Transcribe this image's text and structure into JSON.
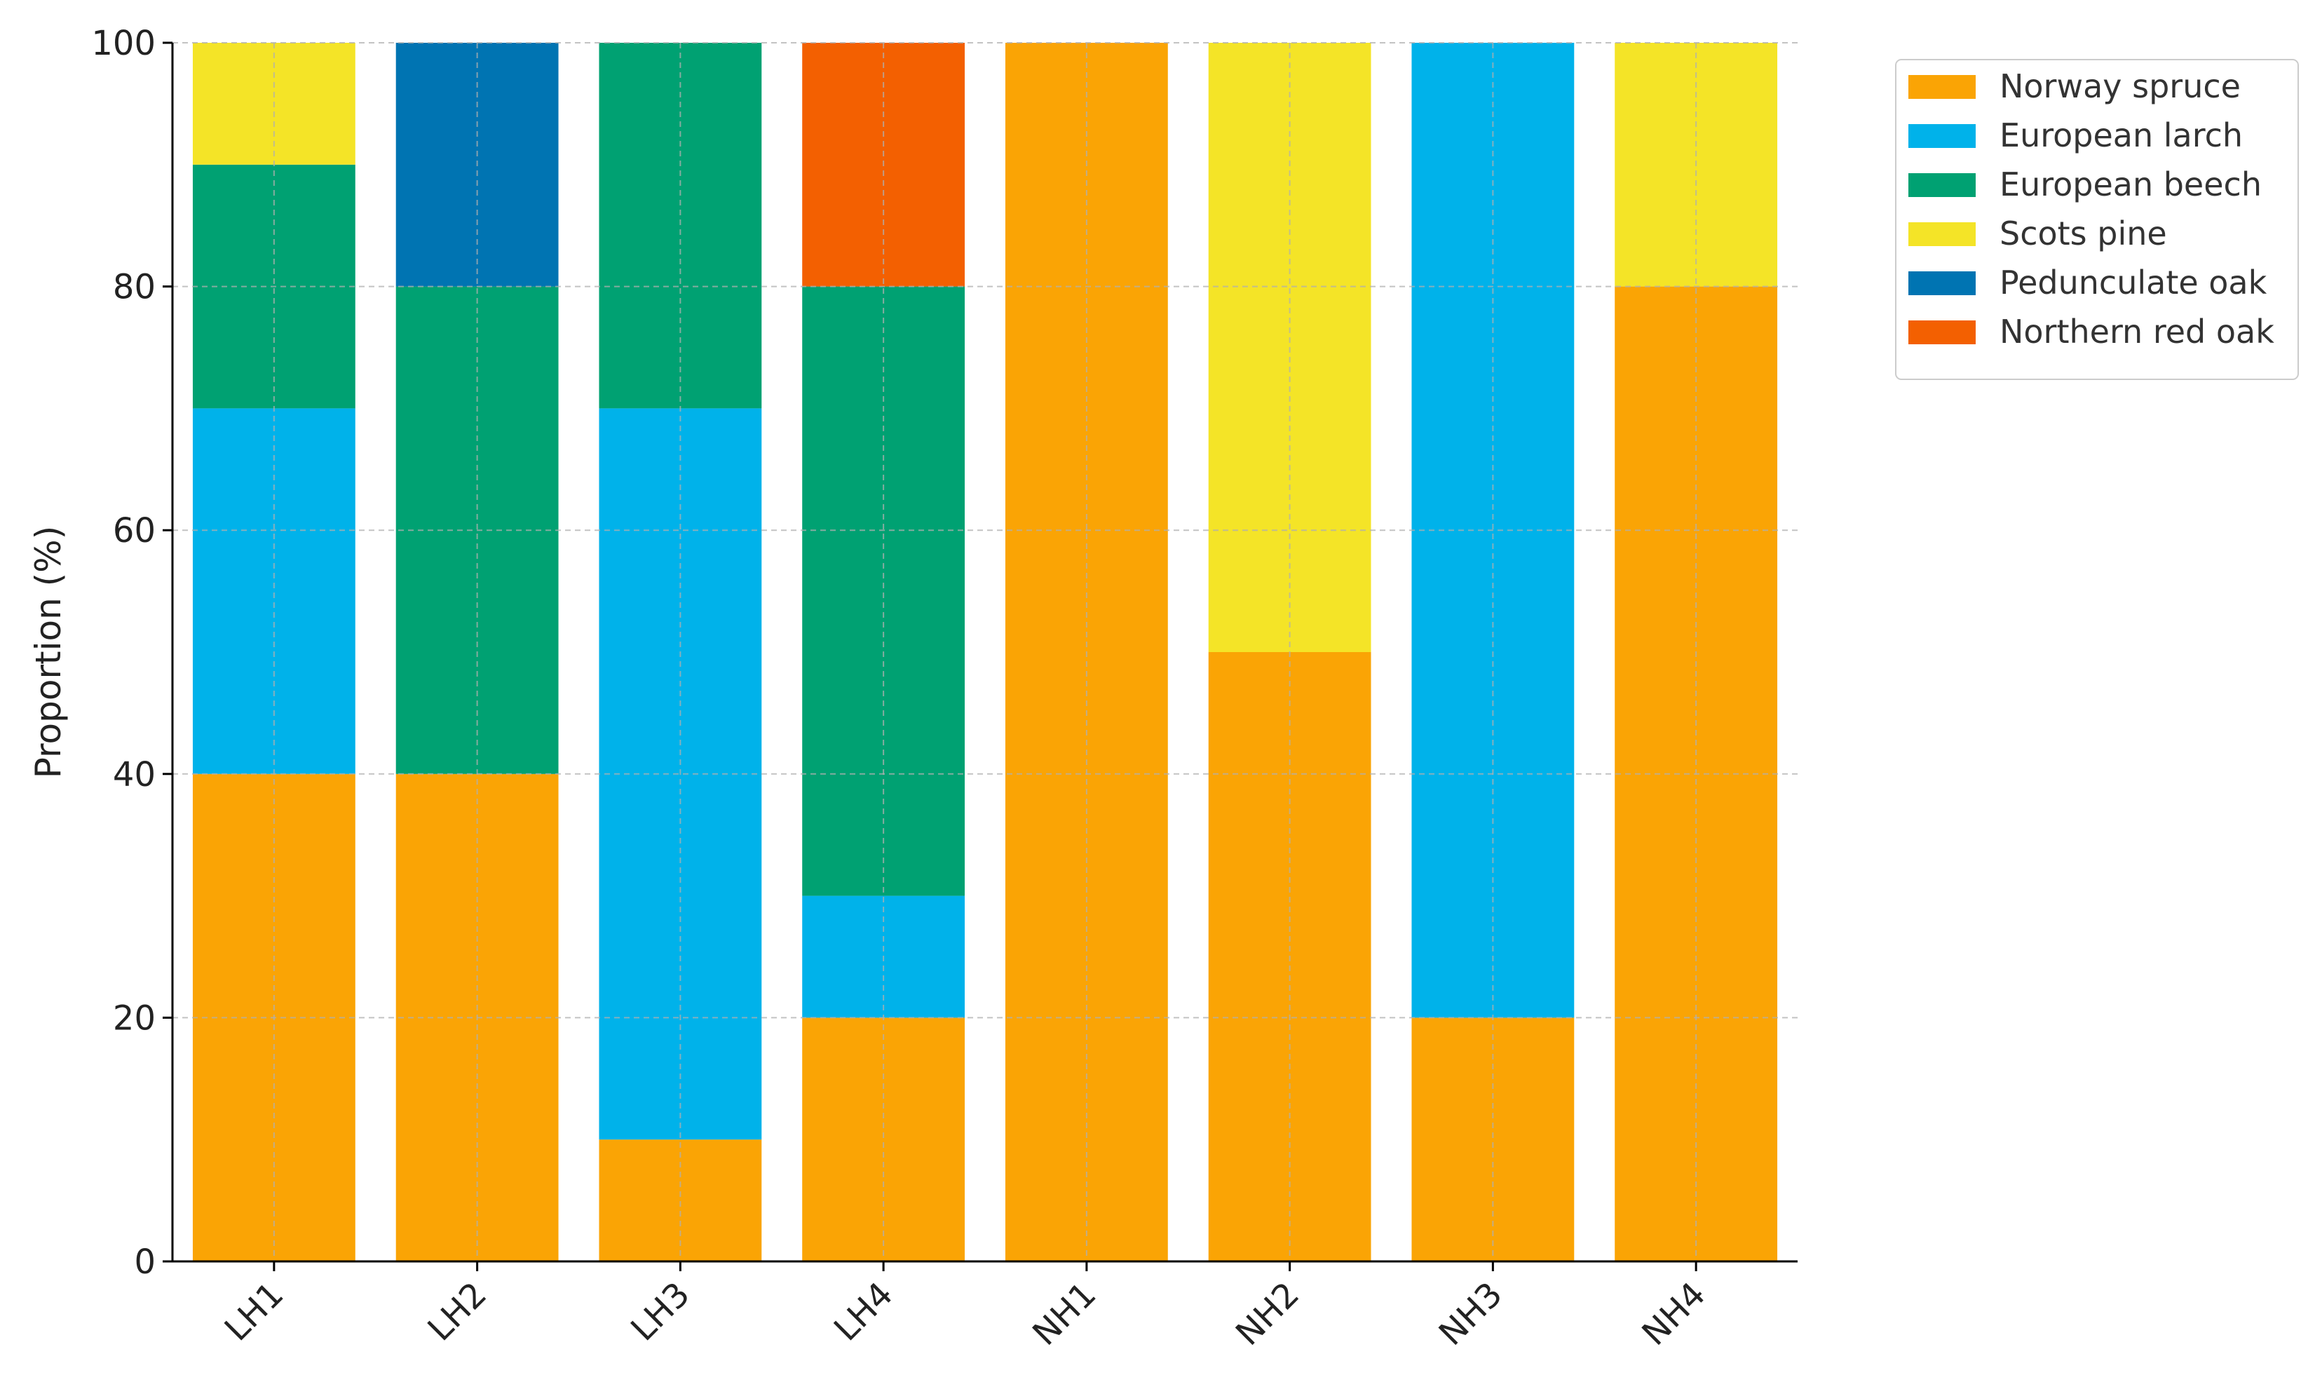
{
  "chart_data": {
    "type": "bar",
    "stacked": true,
    "title": "",
    "xlabel": "",
    "ylabel": "Proportion (%)",
    "ylim": [
      0,
      100
    ],
    "yticks": [
      0,
      20,
      40,
      60,
      80,
      100
    ],
    "grid": true,
    "legend_position": "top-right, outside plot",
    "categories": [
      "LH1",
      "LH2",
      "LH3",
      "LH4",
      "NH1",
      "NH2",
      "NH3",
      "NH4"
    ],
    "series": [
      {
        "name": "Norway spruce",
        "color": "#FAA405",
        "values": [
          40,
          40,
          10,
          20,
          100,
          50,
          20,
          80
        ]
      },
      {
        "name": "European larch",
        "color": "#00B2EA",
        "values": [
          30,
          0,
          60,
          10,
          0,
          0,
          80,
          0
        ]
      },
      {
        "name": "European beech",
        "color": "#00A172",
        "values": [
          20,
          40,
          30,
          50,
          0,
          0,
          0,
          0
        ]
      },
      {
        "name": "Scots pine",
        "color": "#F4E427",
        "values": [
          10,
          0,
          0,
          0,
          0,
          50,
          0,
          20
        ]
      },
      {
        "name": "Pedunculate oak",
        "color": "#0074B2",
        "values": [
          0,
          20,
          0,
          0,
          0,
          0,
          0,
          0
        ]
      },
      {
        "name": "Northern red oak",
        "color": "#F36001",
        "values": [
          0,
          0,
          0,
          20,
          0,
          0,
          0,
          0
        ]
      }
    ]
  }
}
